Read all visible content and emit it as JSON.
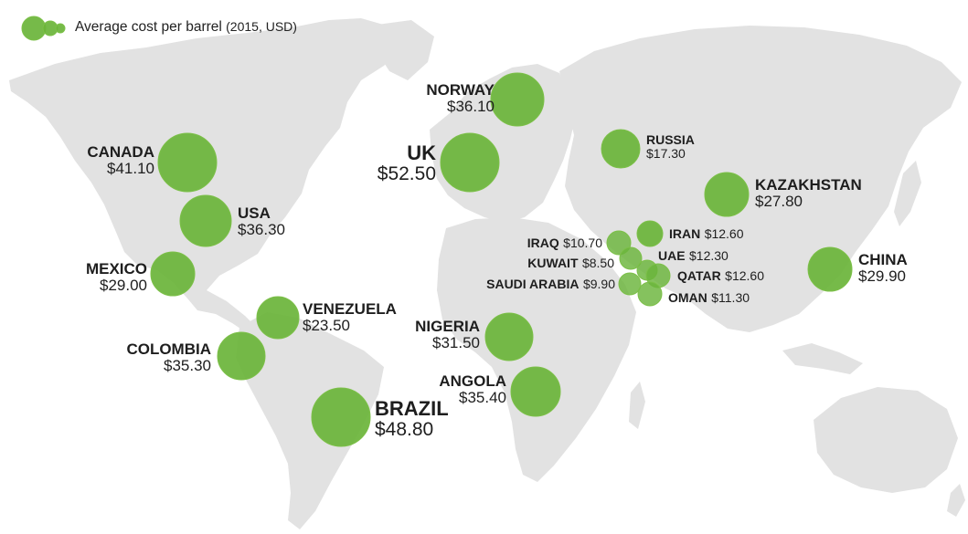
{
  "legend": {
    "title": "Average cost per barrel",
    "subtitle": "(2015, USD)",
    "bubble_color": "#6ab43a"
  },
  "land_color": "#e2e2e2",
  "countries": {
    "canada": {
      "name": "CANADA",
      "value": "$41.10"
    },
    "usa": {
      "name": "USA",
      "value": "$36.30"
    },
    "mexico": {
      "name": "MEXICO",
      "value": "$29.00"
    },
    "venezuela": {
      "name": "VENEZUELA",
      "value": "$23.50"
    },
    "colombia": {
      "name": "COLOMBIA",
      "value": "$35.30"
    },
    "brazil": {
      "name": "BRAZIL",
      "value": "$48.80"
    },
    "norway": {
      "name": "NORWAY",
      "value": "$36.10"
    },
    "uk": {
      "name": "UK",
      "value": "$52.50"
    },
    "russia": {
      "name": "RUSSIA",
      "value": "$17.30"
    },
    "kazakhstan": {
      "name": "KAZAKHSTAN",
      "value": "$27.80"
    },
    "china": {
      "name": "CHINA",
      "value": "$29.90"
    },
    "nigeria": {
      "name": "NIGERIA",
      "value": "$31.50"
    },
    "angola": {
      "name": "ANGOLA",
      "value": "$35.40"
    },
    "iran": {
      "name": "IRAN",
      "value": "$12.60"
    },
    "iraq": {
      "name": "IRAQ",
      "value": "$10.70"
    },
    "uae": {
      "name": "UAE",
      "value": "$12.30"
    },
    "kuwait": {
      "name": "KUWAIT",
      "value": "$8.50"
    },
    "qatar": {
      "name": "QATAR",
      "value": "$12.60"
    },
    "saudi_arabia": {
      "name": "SAUDI ARABIA",
      "value": "$9.90"
    },
    "oman": {
      "name": "OMAN",
      "value": "$11.30"
    }
  }
}
